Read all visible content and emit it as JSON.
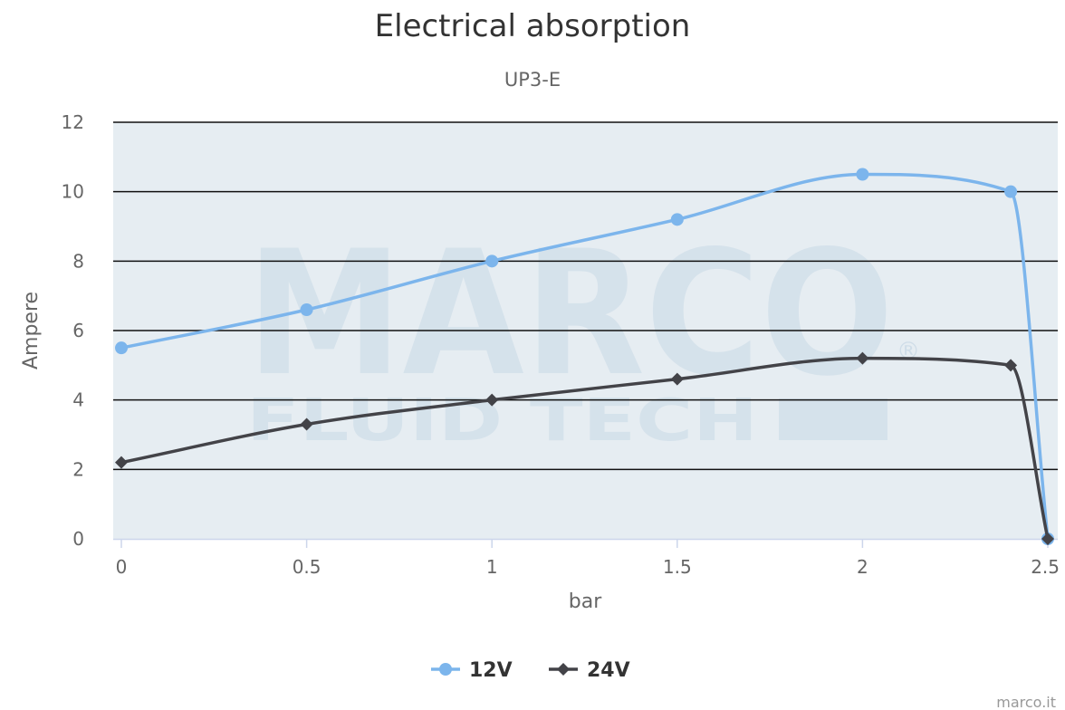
{
  "chart_data": {
    "type": "line",
    "title": "Electrical absorption",
    "subtitle": "UP3-E",
    "xlabel": "bar",
    "ylabel": "Ampere",
    "xlim": [
      0,
      2.5
    ],
    "ylim": [
      0,
      12
    ],
    "x_ticks": [
      "0",
      "0.5",
      "1",
      "1.5",
      "2",
      "2.5"
    ],
    "y_ticks": [
      "0",
      "2",
      "4",
      "6",
      "8",
      "10",
      "12"
    ],
    "grid": true,
    "legend_position": "bottom-center",
    "series": [
      {
        "name": "12V",
        "color": "#7cb5ec",
        "marker": "circle",
        "smooth": true,
        "points": [
          [
            0,
            5.5
          ],
          [
            0.5,
            6.6
          ],
          [
            1,
            8
          ],
          [
            1.5,
            9.2
          ],
          [
            2,
            10.5
          ],
          [
            2.4,
            10
          ],
          [
            2.5,
            0
          ]
        ]
      },
      {
        "name": "24V",
        "color": "#434348",
        "marker": "diamond",
        "smooth": true,
        "points": [
          [
            0,
            2.2
          ],
          [
            0.5,
            3.3
          ],
          [
            1,
            4
          ],
          [
            1.5,
            4.6
          ],
          [
            2,
            5.2
          ],
          [
            2.4,
            5
          ],
          [
            2.5,
            0
          ]
        ]
      }
    ]
  },
  "watermark": {
    "main": "MARCO",
    "sub": "FLUID TECH",
    "mark": "®"
  },
  "credits": "marco.it"
}
